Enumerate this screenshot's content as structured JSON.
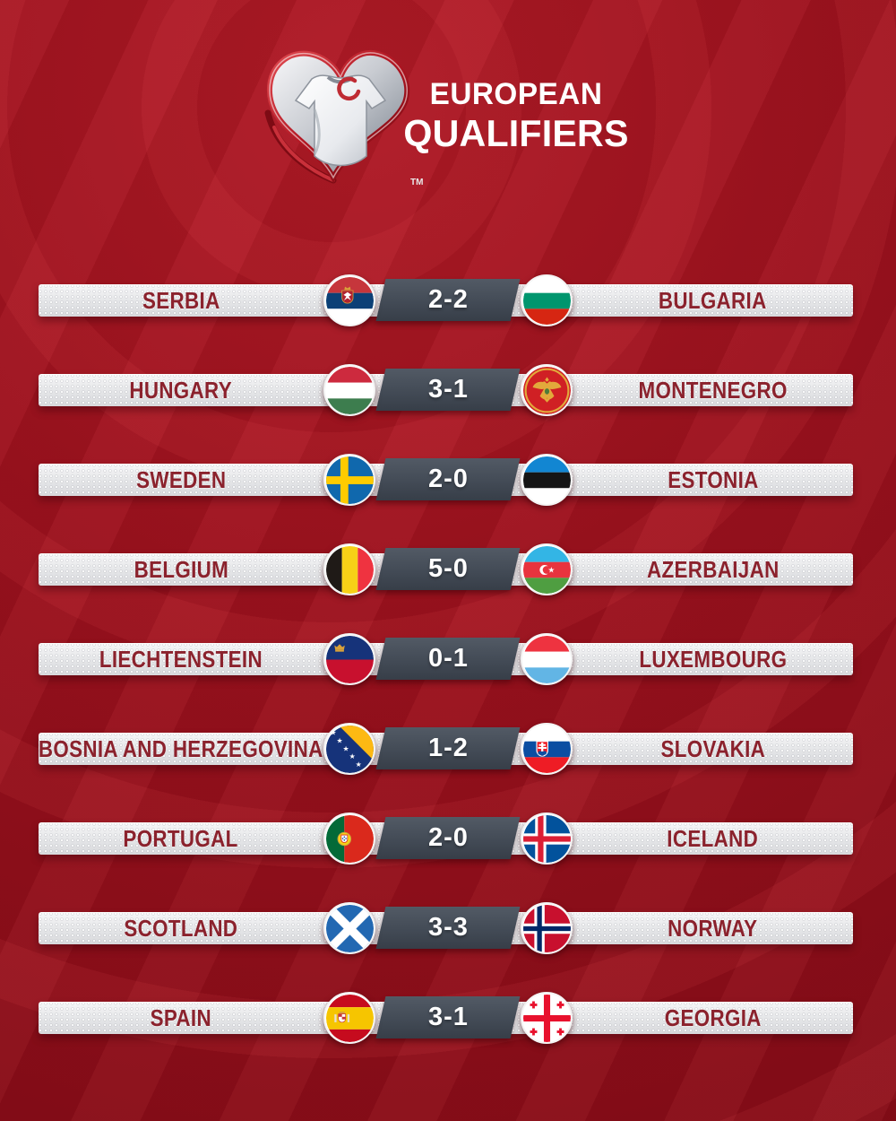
{
  "header": {
    "logo_icon": "european-qualifiers-heart-jersey-logo",
    "trademark": "TM",
    "title_line1": "EUROPEAN",
    "title_line2": "QUALIFIERS"
  },
  "colors": {
    "background_red": "#9b111d",
    "bar_silver": "#e7e8ea",
    "score_box_slate": "#434b56",
    "team_text_maroon": "#8b222d",
    "score_text": "#ffffff",
    "title_text": "#ffffff"
  },
  "matches": [
    {
      "home": "SERBIA",
      "home_flag": "serbia",
      "score": "2-2",
      "away": "BULGARIA",
      "away_flag": "bulgaria"
    },
    {
      "home": "HUNGARY",
      "home_flag": "hungary",
      "score": "3-1",
      "away": "MONTENEGRO",
      "away_flag": "montenegro"
    },
    {
      "home": "SWEDEN",
      "home_flag": "sweden",
      "score": "2-0",
      "away": "ESTONIA",
      "away_flag": "estonia"
    },
    {
      "home": "BELGIUM",
      "home_flag": "belgium",
      "score": "5-0",
      "away": "AZERBAIJAN",
      "away_flag": "azerbaijan"
    },
    {
      "home": "LIECHTENSTEIN",
      "home_flag": "liechtenstein",
      "score": "0-1",
      "away": "LUXEMBOURG",
      "away_flag": "luxembourg"
    },
    {
      "home": "BOSNIA AND HERZEGOVINA",
      "home_flag": "bosnia-and-herzegovina",
      "score": "1-2",
      "away": "SLOVAKIA",
      "away_flag": "slovakia"
    },
    {
      "home": "PORTUGAL",
      "home_flag": "portugal",
      "score": "2-0",
      "away": "ICELAND",
      "away_flag": "iceland"
    },
    {
      "home": "SCOTLAND",
      "home_flag": "scotland",
      "score": "3-3",
      "away": "NORWAY",
      "away_flag": "norway"
    },
    {
      "home": "SPAIN",
      "home_flag": "spain",
      "score": "3-1",
      "away": "GEORGIA",
      "away_flag": "georgia"
    }
  ]
}
